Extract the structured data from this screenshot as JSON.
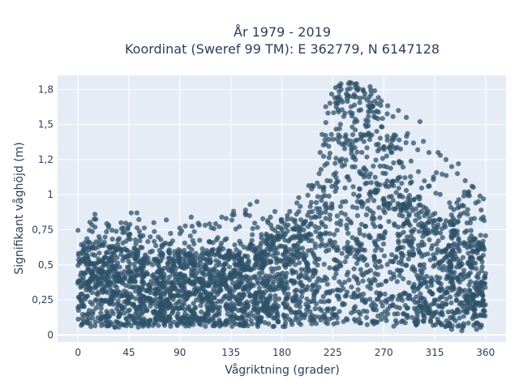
{
  "title": {
    "line1": "År 1979 - 2019",
    "line2": "Koordinat (Sweref 99 TM): E 362779, N 6147128"
  },
  "colors": {
    "plot_background": "#e5ecf6",
    "grid": "#ffffff",
    "marker": "#2e5168",
    "text": "#2a3f5f"
  },
  "chart_data": {
    "type": "scatter",
    "title": "År 1979 - 2019 / Koordinat (Sweref 99 TM): E 362779, N 6147128",
    "xlabel": "Vågriktning (grader)",
    "ylabel": "Signifikant våghöjd (m)",
    "xlim": [
      -18,
      378
    ],
    "ylim": [
      -0.05,
      1.85
    ],
    "grid": true,
    "x_ticks": [
      0,
      45,
      90,
      135,
      180,
      225,
      270,
      315,
      360
    ],
    "x_tick_labels": [
      "0",
      "45",
      "90",
      "135",
      "180",
      "225",
      "270",
      "315",
      "360"
    ],
    "y_ticks": [
      0,
      0.25,
      0.5,
      0.75,
      1,
      1.25,
      1.5,
      1.75
    ],
    "y_tick_labels": [
      "0",
      "0,25",
      "0,5",
      "0,75",
      "1",
      "1,2",
      "1,5",
      "1,8"
    ],
    "marker_color": "#2e5168",
    "marker_opacity": 0.75,
    "envelope": {
      "x": [
        0,
        10,
        20,
        45,
        60,
        90,
        120,
        150,
        180,
        200,
        210,
        220,
        230,
        240,
        250,
        260,
        270,
        280,
        290,
        300,
        315,
        330,
        345,
        355,
        360
      ],
      "y_low": [
        0.06,
        0.06,
        0.06,
        0.05,
        0.06,
        0.06,
        0.06,
        0.06,
        0.06,
        0.06,
        0.07,
        0.07,
        0.07,
        0.07,
        0.07,
        0.07,
        0.07,
        0.06,
        0.06,
        0.06,
        0.06,
        0.05,
        0.05,
        0.05,
        0.06
      ],
      "y_core": [
        0.62,
        0.66,
        0.64,
        0.6,
        0.58,
        0.57,
        0.6,
        0.62,
        0.7,
        0.8,
        0.98,
        1.42,
        1.66,
        1.7,
        1.68,
        1.62,
        1.46,
        1.22,
        1.02,
        0.92,
        0.84,
        0.78,
        0.72,
        0.66,
        0.62
      ],
      "y_max": [
        0.75,
        0.9,
        0.82,
        0.86,
        0.8,
        0.78,
        0.82,
        0.96,
        0.86,
        1.02,
        1.2,
        1.72,
        1.79,
        1.8,
        1.79,
        1.74,
        1.7,
        1.63,
        1.46,
        1.32,
        1.22,
        1.15,
        1.1,
        0.99,
        0.8
      ]
    },
    "scattered_outliers": [
      [
        15,
        0.86
      ],
      [
        38,
        0.8
      ],
      [
        47,
        0.87
      ],
      [
        52,
        0.87
      ],
      [
        67,
        0.8
      ],
      [
        78,
        0.82
      ],
      [
        100,
        0.84
      ],
      [
        127,
        0.84
      ],
      [
        148,
        0.89
      ],
      [
        152,
        0.93
      ],
      [
        158,
        0.95
      ],
      [
        170,
        0.84
      ],
      [
        187,
        0.88
      ],
      [
        195,
        0.88
      ],
      [
        208,
        1.06
      ],
      [
        213,
        1.15
      ],
      [
        218,
        1.39
      ],
      [
        283,
        1.6
      ],
      [
        290,
        1.55
      ],
      [
        302,
        1.52
      ],
      [
        305,
        1.38
      ],
      [
        320,
        1.28
      ],
      [
        325,
        1.25
      ],
      [
        330,
        1.2
      ],
      [
        335,
        1.15
      ],
      [
        342,
        1.1
      ],
      [
        348,
        1.06
      ],
      [
        355,
        0.99
      ],
      [
        358,
        0.97
      ],
      [
        240,
        1.8
      ],
      [
        246,
        1.79
      ],
      [
        258,
        1.77
      ],
      [
        262,
        1.74
      ],
      [
        300,
        1.32
      ],
      [
        310,
        1.3
      ],
      [
        318,
        1.3
      ],
      [
        336,
        1.22
      ],
      [
        344,
        0.86
      ],
      [
        350,
        0.83
      ],
      [
        356,
        0.89
      ],
      [
        339,
        0.03
      ],
      [
        352,
        0.04
      ],
      [
        330,
        0.04
      ]
    ]
  }
}
